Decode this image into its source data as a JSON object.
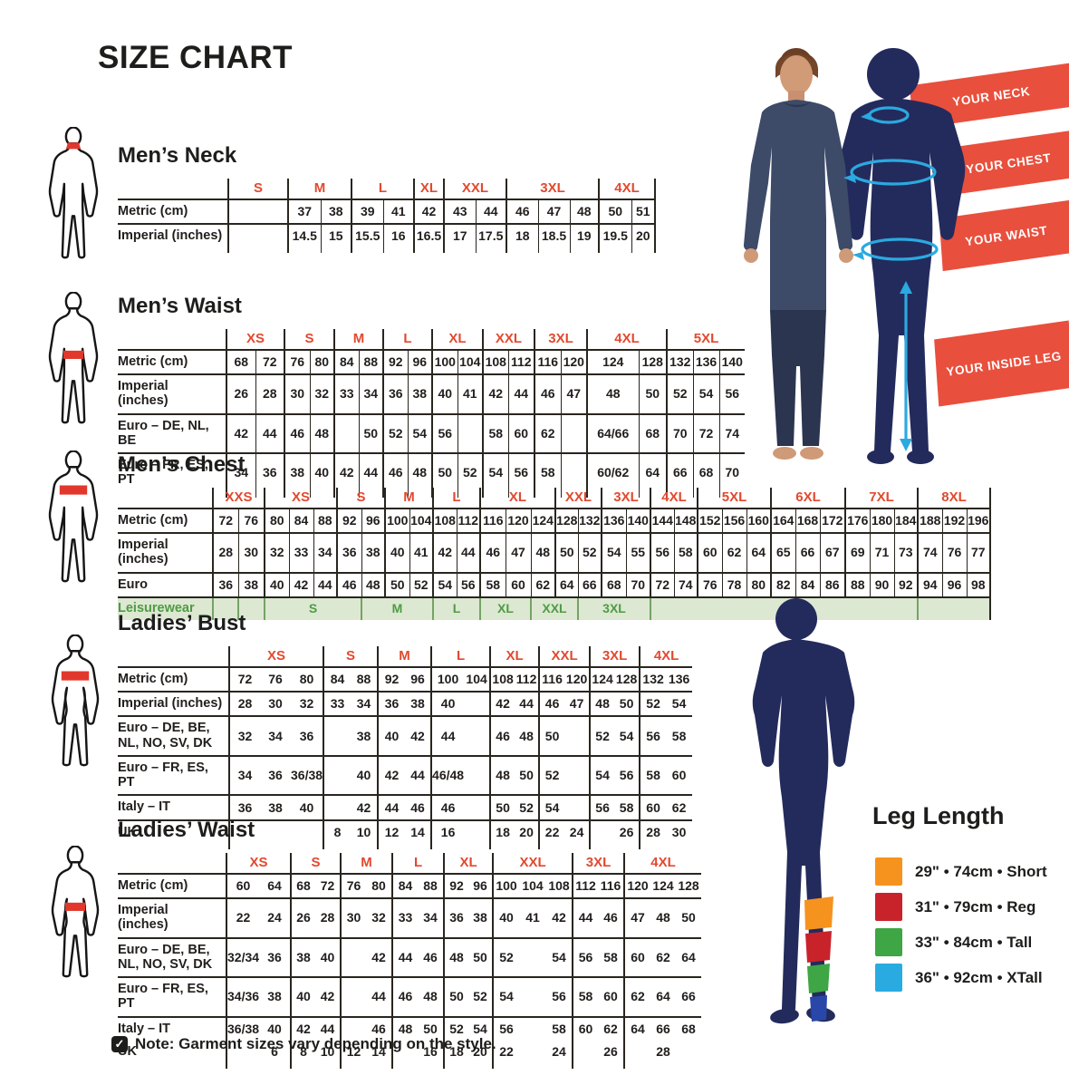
{
  "title": "SIZE CHART",
  "note": {
    "text": "Note: Garment sizes vary depending on the style."
  },
  "banners": [
    {
      "label": "YOUR NECK"
    },
    {
      "label": "YOUR CHEST"
    },
    {
      "label": "YOUR WAIST"
    },
    {
      "label": "YOUR INSIDE LEG"
    }
  ],
  "leg_length": {
    "title": "Leg Length",
    "items": [
      {
        "swatch": "#F6921E",
        "label": "29\" • 74cm • Short"
      },
      {
        "swatch": "#C8232B",
        "label": "31\" • 79cm • Reg"
      },
      {
        "swatch": "#3EA644",
        "label": "33\" • 84cm • Tall"
      },
      {
        "swatch": "#29ABE2",
        "label": "36\" • 92cm • XTall"
      }
    ]
  },
  "colors": {
    "accent_red": "#E2492F",
    "banner_red": "#E94F3D",
    "navy": "#232B5C",
    "cyan": "#2BA9E0",
    "leisure_green": "#4E9B43",
    "leisure_bg": "#DCE8D2",
    "table_line": "#29251F"
  },
  "tables": [
    {
      "id": "mens-neck",
      "title": "Men’s Neck",
      "labelWidth": 122,
      "innerBorders": true,
      "rightBorder": true,
      "groups": [
        {
          "label": "S",
          "cols": [
            66
          ]
        },
        {
          "label": "M",
          "cols": [
            36,
            34
          ]
        },
        {
          "label": "L",
          "cols": [
            35,
            34
          ]
        },
        {
          "label": "XL",
          "cols": [
            33
          ]
        },
        {
          "label": "XXL",
          "cols": [
            35,
            34
          ]
        },
        {
          "label": "3XL",
          "cols": [
            35,
            35,
            32
          ]
        },
        {
          "label": "4XL",
          "cols": [
            36,
            26
          ]
        }
      ],
      "rows": [
        {
          "label": "Metric (cm)",
          "cells": [
            "",
            "37",
            "38",
            "39",
            "41",
            "42",
            "43",
            "44",
            "46",
            "47",
            "48",
            "50",
            "51"
          ]
        },
        {
          "label": "Imperial (inches)",
          "cells": [
            "",
            "14.5",
            "15",
            "15.5",
            "16",
            "16.5",
            "17",
            "17.5",
            "18",
            "18.5",
            "19",
            "19.5",
            "20"
          ]
        }
      ]
    },
    {
      "id": "mens-waist",
      "title": "Men’s Waist",
      "labelWidth": 120,
      "innerBorders": true,
      "rightBorder": false,
      "groups": [
        {
          "label": "XS",
          "cols": [
            32,
            32
          ]
        },
        {
          "label": "S",
          "cols": [
            28,
            27
          ]
        },
        {
          "label": "M",
          "cols": [
            27,
            27
          ]
        },
        {
          "label": "L",
          "cols": [
            27,
            27
          ]
        },
        {
          "label": "XL",
          "cols": [
            28,
            28
          ]
        },
        {
          "label": "XXL",
          "cols": [
            28,
            29
          ]
        },
        {
          "label": "3XL",
          "cols": [
            29,
            29
          ]
        },
        {
          "label": "4XL",
          "cols": [
            57,
            31
          ]
        },
        {
          "label": "5XL",
          "cols": [
            29,
            29,
            28
          ]
        }
      ],
      "rows": [
        {
          "label": "Metric (cm)",
          "cells": [
            "68",
            "72",
            "76",
            "80",
            "84",
            "88",
            "92",
            "96",
            "100",
            "104",
            "108",
            "112",
            "116",
            "120",
            "124",
            "128",
            "132",
            "136",
            "140"
          ]
        },
        {
          "label": "Imperial (inches)",
          "cells": [
            "26",
            "28",
            "30",
            "32",
            "33",
            "34",
            "36",
            "38",
            "40",
            "41",
            "42",
            "44",
            "46",
            "47",
            "48",
            "50",
            "52",
            "54",
            "56"
          ]
        },
        {
          "label": "Euro – DE, NL, BE",
          "cells": [
            "42",
            "44",
            "46",
            "48",
            "",
            "50",
            "52",
            "54",
            "56",
            "",
            "58",
            "60",
            "62",
            "",
            "64/66",
            "68",
            "70",
            "72",
            "74"
          ]
        },
        {
          "label": "Euro – FR, ES, PT",
          "cells": [
            "34",
            "36",
            "38",
            "40",
            "42",
            "44",
            "46",
            "48",
            "50",
            "52",
            "54",
            "56",
            "58",
            "",
            "60/62",
            "64",
            "66",
            "68",
            "70"
          ]
        }
      ]
    },
    {
      "id": "mens-chest",
      "title": "Men’s Chest",
      "labelWidth": 105,
      "innerBorders": true,
      "rightBorder": true,
      "groups": [
        {
          "label": "XXS",
          "cols": [
            28,
            29
          ]
        },
        {
          "label": "XS",
          "cols": [
            27,
            27,
            26
          ]
        },
        {
          "label": "S",
          "cols": [
            27,
            26
          ]
        },
        {
          "label": "M",
          "cols": [
            27,
            26
          ]
        },
        {
          "label": "L",
          "cols": [
            26,
            26
          ]
        },
        {
          "label": "XL",
          "cols": [
            28,
            28,
            27
          ]
        },
        {
          "label": "XXL",
          "cols": [
            25,
            26
          ]
        },
        {
          "label": "3XL",
          "cols": [
            27,
            27
          ]
        },
        {
          "label": "4XL",
          "cols": [
            26,
            26
          ]
        },
        {
          "label": "5XL",
          "cols": [
            27,
            27,
            27
          ]
        },
        {
          "label": "6XL",
          "cols": [
            27,
            27,
            28
          ]
        },
        {
          "label": "7XL",
          "cols": [
            27,
            27,
            26
          ]
        },
        {
          "label": "8XL",
          "cols": [
            27,
            27,
            26
          ]
        }
      ],
      "rows": [
        {
          "label": "Metric (cm)",
          "cells": [
            "72",
            "76",
            "80",
            "84",
            "88",
            "92",
            "96",
            "100",
            "104",
            "108",
            "112",
            "116",
            "120",
            "124",
            "128",
            "132",
            "136",
            "140",
            "144",
            "148",
            "152",
            "156",
            "160",
            "164",
            "168",
            "172",
            "176",
            "180",
            "184",
            "188",
            "192",
            "196"
          ]
        },
        {
          "label": "Imperial (inches)",
          "cells": [
            "28",
            "30",
            "32",
            "33",
            "34",
            "36",
            "38",
            "40",
            "41",
            "42",
            "44",
            "46",
            "47",
            "48",
            "50",
            "52",
            "54",
            "55",
            "56",
            "58",
            "60",
            "62",
            "64",
            "65",
            "66",
            "67",
            "69",
            "71",
            "73",
            "74",
            "76",
            "77"
          ]
        },
        {
          "label": "Euro",
          "cells": [
            "36",
            "38",
            "40",
            "42",
            "44",
            "46",
            "48",
            "50",
            "52",
            "54",
            "56",
            "58",
            "60",
            "62",
            "64",
            "66",
            "68",
            "70",
            "72",
            "74",
            "76",
            "78",
            "80",
            "82",
            "84",
            "86",
            "88",
            "90",
            "92",
            "94",
            "96",
            "98"
          ]
        },
        {
          "label": "Leisurewear",
          "cls": "leisure",
          "cells": [
            [
              "",
              1
            ],
            [
              "",
              1
            ],
            [
              "S",
              4
            ],
            [
              "M",
              3
            ],
            [
              "L",
              2
            ],
            [
              "XL",
              2
            ],
            [
              "XXL",
              2
            ],
            [
              "3XL",
              3
            ],
            [
              "",
              11
            ],
            [
              "",
              3
            ]
          ]
        }
      ]
    },
    {
      "id": "ladies-bust",
      "title": "Ladies’ Bust",
      "labelWidth": 123,
      "innerBorders": false,
      "rightBorder": false,
      "groups": [
        {
          "label": "XS",
          "cols": [
            34,
            34,
            35
          ]
        },
        {
          "label": "S",
          "cols": [
            30,
            30
          ]
        },
        {
          "label": "M",
          "cols": [
            30,
            29
          ]
        },
        {
          "label": "L",
          "cols": [
            29,
            29
          ]
        },
        {
          "label": "XL",
          "cols": [
            27,
            27
          ]
        },
        {
          "label": "XXL",
          "cols": [
            28,
            28
          ]
        },
        {
          "label": "3XL",
          "cols": [
            27,
            28
          ]
        },
        {
          "label": "4XL",
          "cols": [
            29,
            29
          ]
        }
      ],
      "rows": [
        {
          "label": "Metric (cm)",
          "cells": [
            "72",
            "76",
            "80",
            "84",
            "88",
            "92",
            "96",
            "100",
            "104",
            "108",
            "112",
            "116",
            "120",
            "124",
            "128",
            "132",
            "136"
          ]
        },
        {
          "label": "Imperial (inches)",
          "cells": [
            "28",
            "30",
            "32",
            "33",
            "34",
            "36",
            "38",
            "40",
            "",
            "42",
            "44",
            "46",
            "47",
            "48",
            "50",
            "52",
            "54"
          ]
        },
        {
          "label": "Euro –  DE, BE, NL, NO, SV, DK",
          "cells": [
            "32",
            "34",
            "36",
            "",
            "38",
            "40",
            "42",
            "44",
            "",
            "46",
            "48",
            "50",
            "",
            "52",
            "54",
            "56",
            "58"
          ]
        },
        {
          "label": "Euro – FR, ES, PT",
          "cells": [
            "34",
            "36",
            "36/38",
            "",
            "40",
            "42",
            "44",
            "46/48",
            "",
            "48",
            "50",
            "52",
            "",
            "54",
            "56",
            "58",
            "60"
          ]
        },
        {
          "label": "Italy – IT",
          "cells": [
            "36",
            "38",
            "40",
            "",
            "42",
            "44",
            "46",
            "46",
            "",
            "50",
            "52",
            "54",
            "",
            "56",
            "58",
            "60",
            "62"
          ]
        },
        {
          "label": "UK",
          "cells": [
            "",
            "",
            "",
            "8",
            "10",
            "12",
            "14",
            "16",
            "",
            "18",
            "20",
            "22",
            "24",
            "",
            "26",
            "28",
            "30"
          ]
        }
      ]
    },
    {
      "id": "ladies-waist",
      "title": "Ladies’ Waist",
      "labelWidth": 120,
      "innerBorders": false,
      "rightBorder": false,
      "groups": [
        {
          "label": "XS",
          "cols": [
            35,
            35
          ]
        },
        {
          "label": "S",
          "cols": [
            27,
            28
          ]
        },
        {
          "label": "M",
          "cols": [
            28,
            29
          ]
        },
        {
          "label": "L",
          "cols": [
            28,
            29
          ]
        },
        {
          "label": "XL",
          "cols": [
            27,
            27
          ]
        },
        {
          "label": "XXL",
          "cols": [
            29,
            30,
            29
          ]
        },
        {
          "label": "3XL",
          "cols": [
            28,
            29
          ]
        },
        {
          "label": "4XL",
          "cols": [
            29,
            28,
            28
          ]
        }
      ],
      "rows": [
        {
          "label": "Metric (cm)",
          "cells": [
            "60",
            "64",
            "68",
            "72",
            "76",
            "80",
            "84",
            "88",
            "92",
            "96",
            "100",
            "104",
            "108",
            "112",
            "116",
            "120",
            "124",
            "128"
          ]
        },
        {
          "label": "Imperial (inches)",
          "cells": [
            "22",
            "24",
            "26",
            "28",
            "30",
            "32",
            "33",
            "34",
            "36",
            "38",
            "40",
            "41",
            "42",
            "44",
            "46",
            "47",
            "48",
            "50"
          ]
        },
        {
          "label": "Euro – DE, BE, NL, NO, SV, DK",
          "cells": [
            "32/34",
            "36",
            "38",
            "40",
            "",
            "42",
            "44",
            "46",
            "48",
            "50",
            "52",
            "",
            "54",
            "56",
            "58",
            "60",
            "62",
            "64"
          ]
        },
        {
          "label": "Euro – FR, ES, PT",
          "cells": [
            "34/36",
            "38",
            "40",
            "42",
            "",
            "44",
            "46",
            "48",
            "50",
            "52",
            "54",
            "",
            "56",
            "58",
            "60",
            "62",
            "64",
            "66"
          ]
        },
        {
          "label": "Italy – IT",
          "cells": [
            "36/38",
            "40",
            "42",
            "44",
            "",
            "46",
            "48",
            "50",
            "52",
            "54",
            "56",
            "",
            "58",
            "60",
            "62",
            "64",
            "66",
            "68"
          ]
        },
        {
          "label": "UK",
          "noline": true,
          "cells": [
            "",
            "6",
            "8",
            "10",
            "12",
            "14",
            "",
            "16",
            "18",
            "20",
            "22",
            "",
            "24",
            "",
            "26",
            "",
            "28",
            ""
          ]
        }
      ]
    }
  ]
}
